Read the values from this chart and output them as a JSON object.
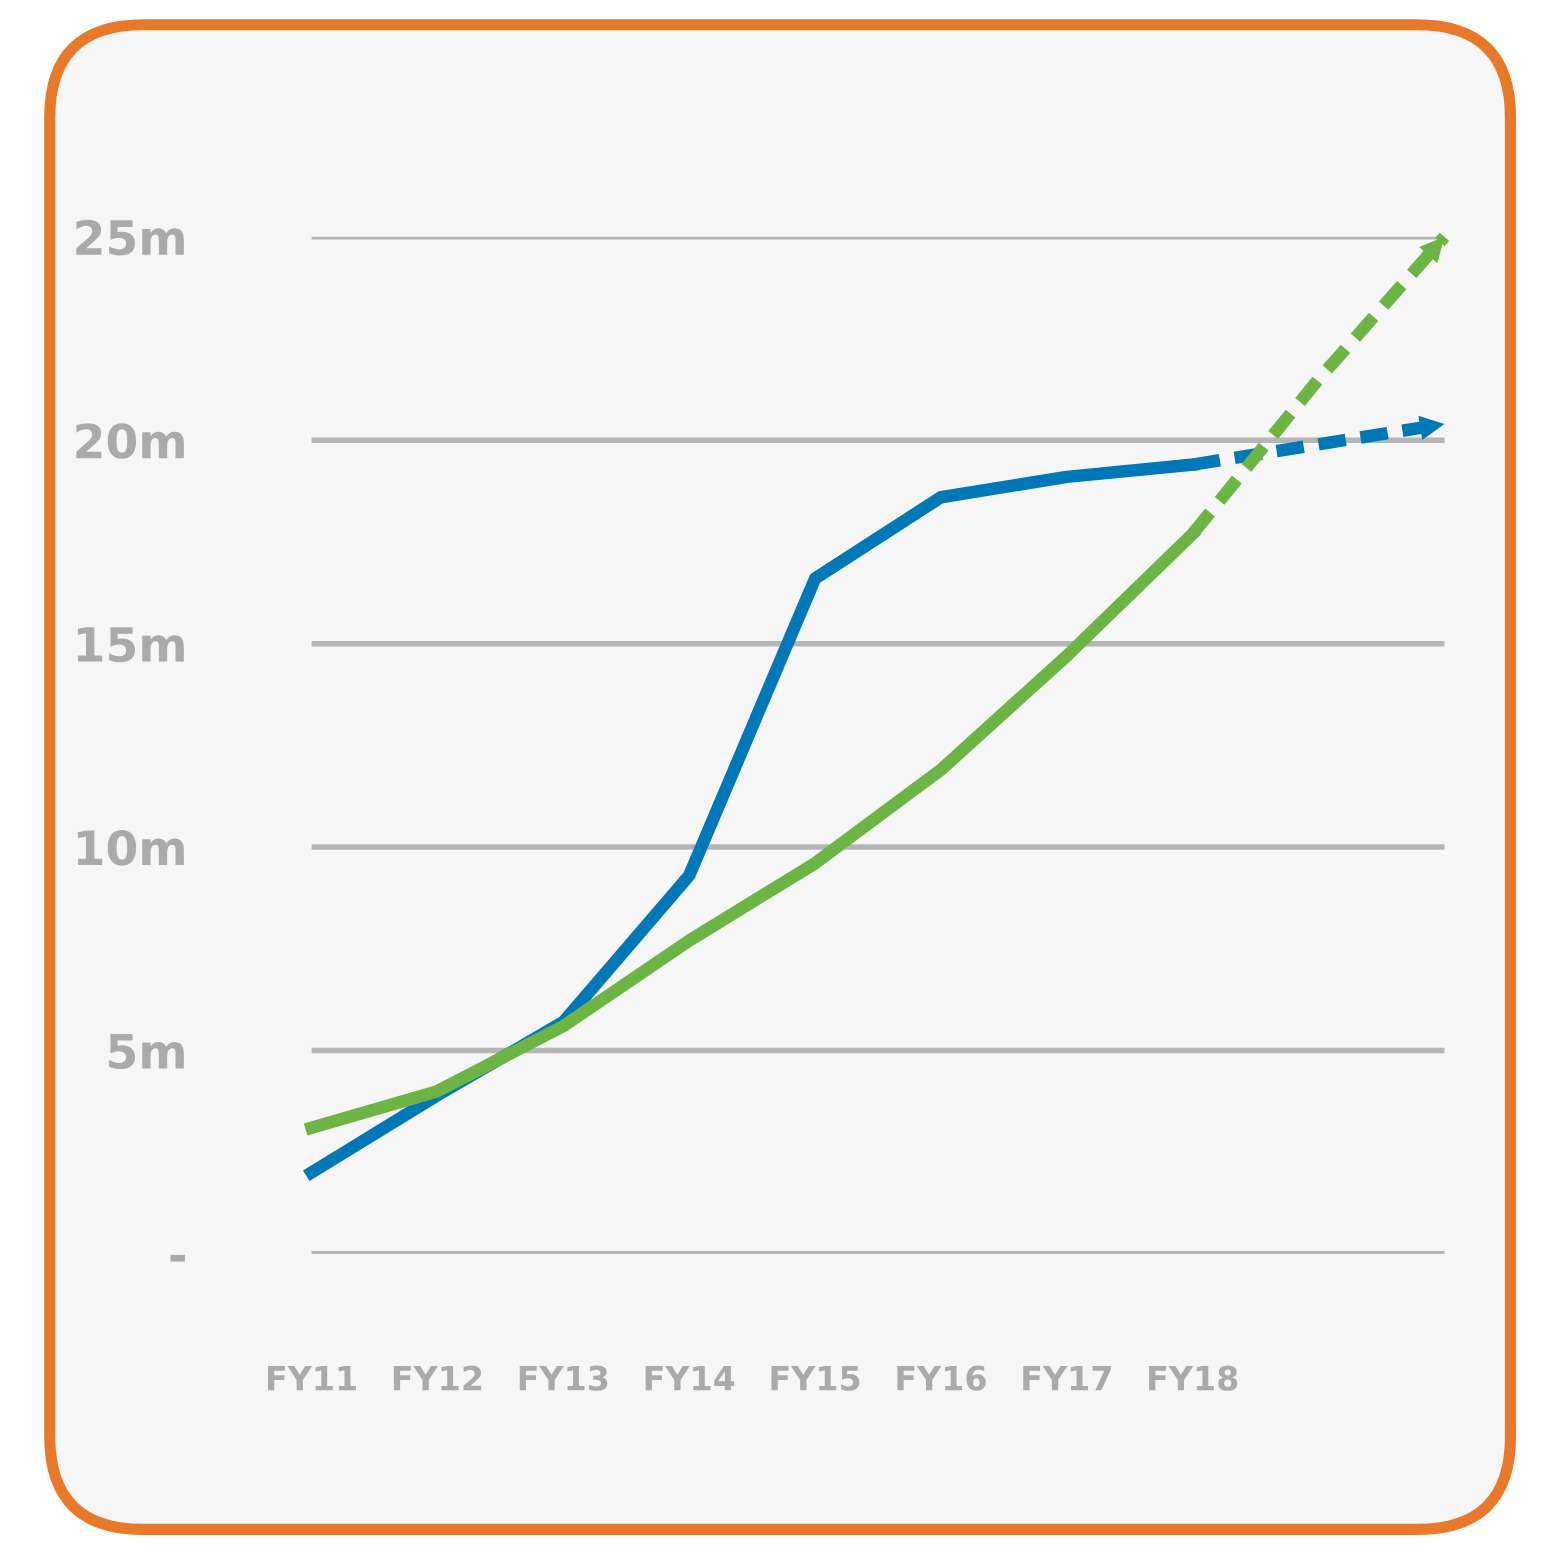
{
  "chart_data": {
    "type": "line",
    "categories": [
      "FY11",
      "FY12",
      "FY13",
      "FY14",
      "FY15",
      "FY16",
      "FY17",
      "FY18",
      null,
      null
    ],
    "series": [
      {
        "color": "#0077b6",
        "line_style": "solid",
        "values": [
          2.0,
          3.9,
          5.7,
          9.3,
          16.6,
          18.6,
          19.1,
          19.4,
          null,
          null
        ]
      },
      {
        "color": "#0077b6",
        "line_style": "dashed",
        "values": [
          null,
          null,
          null,
          null,
          null,
          null,
          null,
          19.4,
          19.9,
          20.4
        ]
      },
      {
        "color": "#6cb545",
        "line_style": "solid",
        "values": [
          3.1,
          4.0,
          5.6,
          7.7,
          9.6,
          11.9,
          14.7,
          17.7,
          null,
          null
        ]
      },
      {
        "color": "#6cb545",
        "line_style": "dashed",
        "values": [
          null,
          null,
          null,
          null,
          null,
          null,
          null,
          17.7,
          21.5,
          25.0
        ]
      }
    ],
    "ylim": [
      0,
      25
    ],
    "yticks": [
      {
        "value": 0,
        "label": "-"
      },
      {
        "value": 5,
        "label": "5m"
      },
      {
        "value": 10,
        "label": "10m"
      },
      {
        "value": 15,
        "label": "15m"
      },
      {
        "value": 20,
        "label": "20m"
      },
      {
        "value": 25,
        "label": "25m"
      }
    ],
    "grid": "y",
    "legend": false,
    "marker": "none"
  }
}
